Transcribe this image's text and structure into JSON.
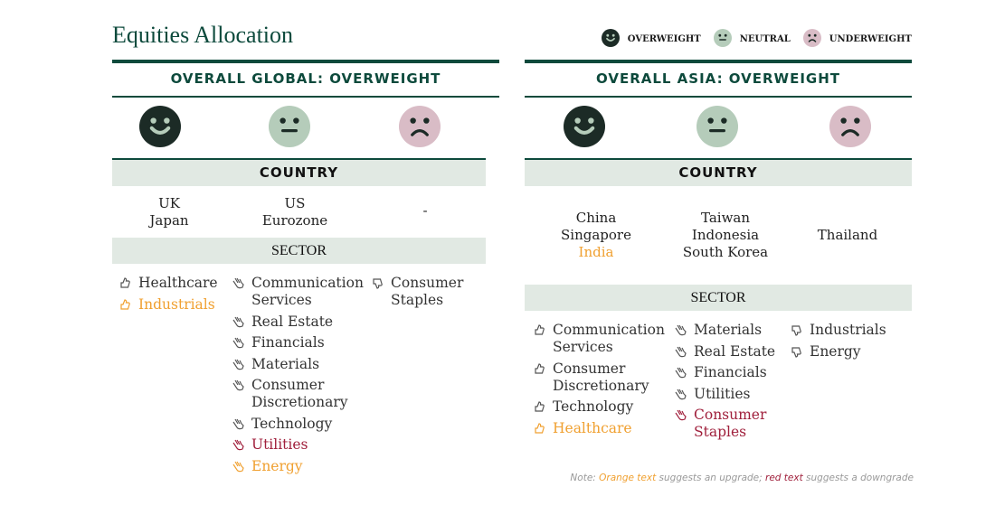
{
  "title": "Equities Allocation",
  "legend": [
    {
      "label": "OVERWEIGHT",
      "icon": "overweight-face-icon"
    },
    {
      "label": "NEUTRAL",
      "icon": "neutral-face-icon"
    },
    {
      "label": "UNDERWEIGHT",
      "icon": "underweight-face-icon"
    }
  ],
  "colors": {
    "brand": "#0d4a3c",
    "overweight": "#1c2b26",
    "neutral": "#b5ccba",
    "underweight": "#d9bcc6",
    "band": "#e1e9e3",
    "upgrade": "#f0a030",
    "downgrade": "#a0203c"
  },
  "panels": [
    {
      "title": "OVERALL GLOBAL: OVERWEIGHT",
      "country_label": "COUNTRY",
      "sector_label": "SECTOR",
      "countries": [
        [
          {
            "t": "UK"
          },
          {
            "t": "Japan"
          }
        ],
        [
          {
            "t": "US"
          },
          {
            "t": "Eurozone"
          }
        ],
        [
          {
            "t": "-"
          }
        ]
      ],
      "sectors": [
        [
          {
            "t": "Healthcare"
          },
          {
            "t": "Industrials",
            "c": "orange"
          }
        ],
        [
          {
            "t": "Communication Services"
          },
          {
            "t": "Real Estate"
          },
          {
            "t": "Financials"
          },
          {
            "t": "Materials"
          },
          {
            "t": "Consumer Discretionary"
          },
          {
            "t": "Technology"
          },
          {
            "t": "Utilities",
            "c": "red"
          },
          {
            "t": "Energy",
            "c": "orange"
          }
        ],
        [
          {
            "t": "Consumer Staples"
          }
        ]
      ]
    },
    {
      "title": "OVERALL ASIA: OVERWEIGHT",
      "country_label": "COUNTRY",
      "sector_label": "SECTOR",
      "countries": [
        [
          {
            "t": "China"
          },
          {
            "t": "Singapore"
          },
          {
            "t": "India",
            "c": "orange"
          }
        ],
        [
          {
            "t": "Taiwan"
          },
          {
            "t": "Indonesia"
          },
          {
            "t": "South Korea"
          }
        ],
        [
          {
            "t": "Thailand"
          }
        ]
      ],
      "sectors": [
        [
          {
            "t": "Communication Services"
          },
          {
            "t": "Consumer Discretionary"
          },
          {
            "t": "Technology"
          },
          {
            "t": "Healthcare",
            "c": "orange"
          }
        ],
        [
          {
            "t": "Materials"
          },
          {
            "t": "Real Estate"
          },
          {
            "t": "Financials"
          },
          {
            "t": "Utilities"
          },
          {
            "t": "Consumer Staples",
            "c": "red"
          }
        ],
        [
          {
            "t": "Industrials"
          },
          {
            "t": "Energy"
          }
        ]
      ]
    }
  ],
  "note": {
    "prefix": "Note: ",
    "orange": "Orange text",
    "mid": " suggests an upgrade; ",
    "red": "red text",
    "suffix": " suggests a downgrade"
  }
}
